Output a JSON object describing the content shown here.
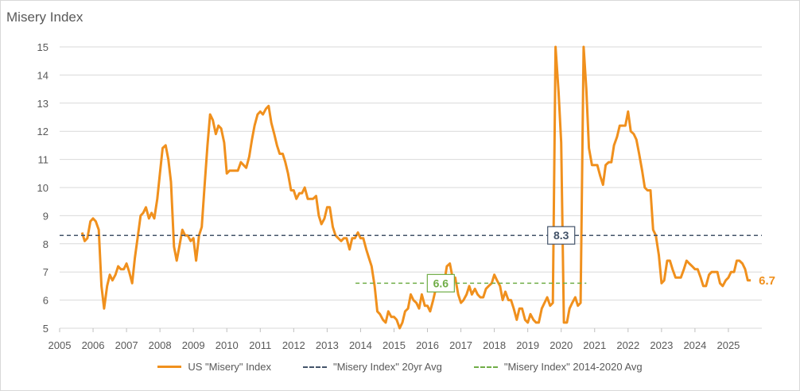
{
  "chart_data": {
    "type": "line",
    "title": "Misery Index",
    "xlim": [
      2005,
      2026
    ],
    "ylim": [
      5,
      15
    ],
    "x_ticks": [
      "2005",
      "2006",
      "2007",
      "2008",
      "2009",
      "2010",
      "2011",
      "2012",
      "2013",
      "2014",
      "2015",
      "2016",
      "2017",
      "2018",
      "2019",
      "2020",
      "2021",
      "2022",
      "2023",
      "2024",
      "2025"
    ],
    "y_ticks": [
      "5",
      "6",
      "7",
      "8",
      "9",
      "10",
      "11",
      "12",
      "13",
      "14",
      "15"
    ],
    "grid": "horizontal",
    "legend_position": "bottom",
    "series": [
      {
        "name": "US \"Misery\" Index",
        "color": "#f0901d",
        "style": "solid",
        "points": [
          [
            2005.67,
            8.4
          ],
          [
            2005.75,
            8.1
          ],
          [
            2005.83,
            8.2
          ],
          [
            2005.92,
            8.8
          ],
          [
            2006.0,
            8.9
          ],
          [
            2006.08,
            8.8
          ],
          [
            2006.17,
            8.5
          ],
          [
            2006.25,
            6.5
          ],
          [
            2006.33,
            5.7
          ],
          [
            2006.42,
            6.5
          ],
          [
            2006.5,
            6.9
          ],
          [
            2006.58,
            6.7
          ],
          [
            2006.67,
            6.9
          ],
          [
            2006.75,
            7.2
          ],
          [
            2006.83,
            7.1
          ],
          [
            2006.92,
            7.1
          ],
          [
            2007.0,
            7.3
          ],
          [
            2007.08,
            7.0
          ],
          [
            2007.17,
            6.6
          ],
          [
            2007.25,
            7.5
          ],
          [
            2007.33,
            8.2
          ],
          [
            2007.42,
            9.0
          ],
          [
            2007.5,
            9.1
          ],
          [
            2007.58,
            9.3
          ],
          [
            2007.67,
            8.9
          ],
          [
            2007.75,
            9.1
          ],
          [
            2007.83,
            8.9
          ],
          [
            2007.92,
            9.6
          ],
          [
            2008.0,
            10.5
          ],
          [
            2008.08,
            11.4
          ],
          [
            2008.17,
            11.5
          ],
          [
            2008.25,
            11.0
          ],
          [
            2008.33,
            10.2
          ],
          [
            2008.42,
            7.9
          ],
          [
            2008.5,
            7.4
          ],
          [
            2008.58,
            7.9
          ],
          [
            2008.67,
            8.5
          ],
          [
            2008.75,
            8.3
          ],
          [
            2008.83,
            8.3
          ],
          [
            2008.92,
            8.1
          ],
          [
            2009.0,
            8.2
          ],
          [
            2009.08,
            7.4
          ],
          [
            2009.17,
            8.3
          ],
          [
            2009.25,
            8.6
          ],
          [
            2009.33,
            10.0
          ],
          [
            2009.42,
            11.5
          ],
          [
            2009.5,
            12.6
          ],
          [
            2009.58,
            12.4
          ],
          [
            2009.67,
            11.9
          ],
          [
            2009.75,
            12.2
          ],
          [
            2009.83,
            12.1
          ],
          [
            2009.92,
            11.6
          ],
          [
            2010.0,
            10.5
          ],
          [
            2010.08,
            10.6
          ],
          [
            2010.17,
            10.6
          ],
          [
            2010.25,
            10.6
          ],
          [
            2010.33,
            10.6
          ],
          [
            2010.42,
            10.9
          ],
          [
            2010.5,
            10.8
          ],
          [
            2010.58,
            10.7
          ],
          [
            2010.67,
            11.1
          ],
          [
            2010.75,
            11.7
          ],
          [
            2010.83,
            12.2
          ],
          [
            2010.92,
            12.6
          ],
          [
            2011.0,
            12.7
          ],
          [
            2011.08,
            12.6
          ],
          [
            2011.17,
            12.8
          ],
          [
            2011.25,
            12.9
          ],
          [
            2011.33,
            12.3
          ],
          [
            2011.42,
            11.9
          ],
          [
            2011.5,
            11.5
          ],
          [
            2011.58,
            11.2
          ],
          [
            2011.67,
            11.2
          ],
          [
            2011.75,
            10.9
          ],
          [
            2011.83,
            10.5
          ],
          [
            2011.92,
            9.9
          ],
          [
            2012.0,
            9.9
          ],
          [
            2012.08,
            9.6
          ],
          [
            2012.17,
            9.8
          ],
          [
            2012.25,
            9.8
          ],
          [
            2012.33,
            10.0
          ],
          [
            2012.42,
            9.6
          ],
          [
            2012.5,
            9.6
          ],
          [
            2012.58,
            9.6
          ],
          [
            2012.67,
            9.7
          ],
          [
            2012.75,
            9.0
          ],
          [
            2012.83,
            8.7
          ],
          [
            2012.92,
            8.9
          ],
          [
            2013.0,
            9.3
          ],
          [
            2013.08,
            9.3
          ],
          [
            2013.17,
            8.6
          ],
          [
            2013.25,
            8.3
          ],
          [
            2013.33,
            8.2
          ],
          [
            2013.42,
            8.1
          ],
          [
            2013.5,
            8.2
          ],
          [
            2013.58,
            8.2
          ],
          [
            2013.67,
            7.8
          ],
          [
            2013.75,
            8.2
          ],
          [
            2013.83,
            8.2
          ],
          [
            2013.92,
            8.4
          ],
          [
            2014.0,
            8.2
          ],
          [
            2014.08,
            8.2
          ],
          [
            2014.17,
            7.8
          ],
          [
            2014.25,
            7.5
          ],
          [
            2014.33,
            7.2
          ],
          [
            2014.42,
            6.5
          ],
          [
            2014.5,
            5.6
          ],
          [
            2014.58,
            5.5
          ],
          [
            2014.67,
            5.3
          ],
          [
            2014.75,
            5.2
          ],
          [
            2014.83,
            5.6
          ],
          [
            2014.92,
            5.4
          ],
          [
            2015.0,
            5.4
          ],
          [
            2015.08,
            5.3
          ],
          [
            2015.17,
            5.0
          ],
          [
            2015.25,
            5.2
          ],
          [
            2015.33,
            5.6
          ],
          [
            2015.42,
            5.7
          ],
          [
            2015.5,
            6.2
          ],
          [
            2015.58,
            6.0
          ],
          [
            2015.67,
            5.9
          ],
          [
            2015.75,
            5.7
          ],
          [
            2015.83,
            6.2
          ],
          [
            2015.92,
            5.8
          ],
          [
            2016.0,
            5.8
          ],
          [
            2016.08,
            5.6
          ],
          [
            2016.17,
            6.0
          ],
          [
            2016.25,
            6.4
          ],
          [
            2016.33,
            6.6
          ],
          [
            2016.42,
            6.7
          ],
          [
            2016.5,
            6.6
          ],
          [
            2016.58,
            7.2
          ],
          [
            2016.67,
            7.3
          ],
          [
            2016.75,
            6.8
          ],
          [
            2016.83,
            6.8
          ],
          [
            2016.92,
            6.2
          ],
          [
            2017.0,
            5.9
          ],
          [
            2017.08,
            6.0
          ],
          [
            2017.17,
            6.2
          ],
          [
            2017.25,
            6.5
          ],
          [
            2017.33,
            6.2
          ],
          [
            2017.42,
            6.4
          ],
          [
            2017.5,
            6.2
          ],
          [
            2017.58,
            6.1
          ],
          [
            2017.67,
            6.1
          ],
          [
            2017.75,
            6.4
          ],
          [
            2017.83,
            6.5
          ],
          [
            2017.92,
            6.6
          ],
          [
            2018.0,
            6.9
          ],
          [
            2018.08,
            6.7
          ],
          [
            2018.17,
            6.5
          ],
          [
            2018.25,
            6.0
          ],
          [
            2018.33,
            6.3
          ],
          [
            2018.42,
            6.0
          ],
          [
            2018.5,
            6.0
          ],
          [
            2018.58,
            5.7
          ],
          [
            2018.67,
            5.3
          ],
          [
            2018.75,
            5.7
          ],
          [
            2018.83,
            5.7
          ],
          [
            2018.92,
            5.3
          ],
          [
            2019.0,
            5.2
          ],
          [
            2019.08,
            5.5
          ],
          [
            2019.17,
            5.3
          ],
          [
            2019.25,
            5.2
          ],
          [
            2019.33,
            5.2
          ],
          [
            2019.42,
            5.7
          ],
          [
            2019.5,
            5.9
          ],
          [
            2019.58,
            6.1
          ],
          [
            2019.67,
            5.8
          ],
          [
            2019.75,
            5.9
          ],
          [
            2019.83,
            15.0
          ],
          [
            2019.92,
            13.4
          ],
          [
            2020.0,
            11.6
          ],
          [
            2020.08,
            5.2
          ],
          [
            2020.17,
            5.2
          ],
          [
            2020.25,
            5.7
          ],
          [
            2020.33,
            5.9
          ],
          [
            2020.42,
            6.1
          ],
          [
            2020.5,
            5.8
          ],
          [
            2020.58,
            5.9
          ],
          [
            2020.67,
            15.0
          ],
          [
            2020.75,
            13.5
          ],
          [
            2020.83,
            11.4
          ],
          [
            2020.92,
            10.8
          ],
          [
            2021.0,
            10.8
          ],
          [
            2021.08,
            10.8
          ],
          [
            2021.17,
            10.4
          ],
          [
            2021.25,
            10.1
          ],
          [
            2021.33,
            10.8
          ],
          [
            2021.42,
            10.9
          ],
          [
            2021.5,
            10.9
          ],
          [
            2021.58,
            11.5
          ],
          [
            2021.67,
            11.8
          ],
          [
            2021.75,
            12.2
          ],
          [
            2021.83,
            12.2
          ],
          [
            2021.92,
            12.2
          ],
          [
            2022.0,
            12.7
          ],
          [
            2022.08,
            12.0
          ],
          [
            2022.17,
            11.9
          ],
          [
            2022.25,
            11.7
          ],
          [
            2022.33,
            11.2
          ],
          [
            2022.42,
            10.6
          ],
          [
            2022.5,
            10.0
          ],
          [
            2022.58,
            9.9
          ],
          [
            2022.67,
            9.9
          ],
          [
            2022.75,
            8.5
          ],
          [
            2022.83,
            8.3
          ],
          [
            2022.92,
            7.6
          ],
          [
            2023.0,
            6.6
          ],
          [
            2023.08,
            6.7
          ],
          [
            2023.17,
            7.4
          ],
          [
            2023.25,
            7.4
          ],
          [
            2023.33,
            7.1
          ],
          [
            2023.42,
            6.8
          ],
          [
            2023.5,
            6.8
          ],
          [
            2023.58,
            6.8
          ],
          [
            2023.67,
            7.1
          ],
          [
            2023.75,
            7.4
          ],
          [
            2023.83,
            7.3
          ],
          [
            2023.92,
            7.2
          ],
          [
            2024.0,
            7.1
          ],
          [
            2024.08,
            7.1
          ],
          [
            2024.17,
            6.8
          ],
          [
            2024.25,
            6.5
          ],
          [
            2024.33,
            6.5
          ],
          [
            2024.42,
            6.9
          ],
          [
            2024.5,
            7.0
          ],
          [
            2024.58,
            7.0
          ],
          [
            2024.67,
            7.0
          ],
          [
            2024.75,
            6.6
          ],
          [
            2024.83,
            6.5
          ],
          [
            2024.92,
            6.7
          ],
          [
            2025.0,
            6.8
          ],
          [
            2025.08,
            7.0
          ],
          [
            2025.17,
            7.0
          ],
          [
            2025.25,
            7.4
          ],
          [
            2025.33,
            7.4
          ],
          [
            2025.42,
            7.3
          ],
          [
            2025.5,
            7.1
          ],
          [
            2025.58,
            6.7
          ],
          [
            2025.67,
            6.7
          ]
        ]
      },
      {
        "name": "\"Misery Index\" 20yr Avg",
        "color": "#44546a",
        "style": "dashed",
        "points": [
          [
            2005.0,
            8.3
          ],
          [
            2026.0,
            8.3
          ]
        ]
      },
      {
        "name": "\"Misery Index\" 2014-2020 Avg",
        "color": "#70ad47",
        "style": "dashed",
        "points": [
          [
            2013.85,
            6.6
          ],
          [
            2020.75,
            6.6
          ]
        ]
      }
    ],
    "annotations": [
      {
        "text": "8.3",
        "x": 2020.0,
        "y": 8.3,
        "color": "#44546a",
        "boxed": true
      },
      {
        "text": "6.6",
        "x": 2016.4,
        "y": 6.6,
        "color": "#70ad47",
        "boxed": true
      },
      {
        "text": "6.7",
        "x": 2025.67,
        "y": 6.7,
        "color": "#f0901d",
        "boxed": false
      }
    ]
  }
}
